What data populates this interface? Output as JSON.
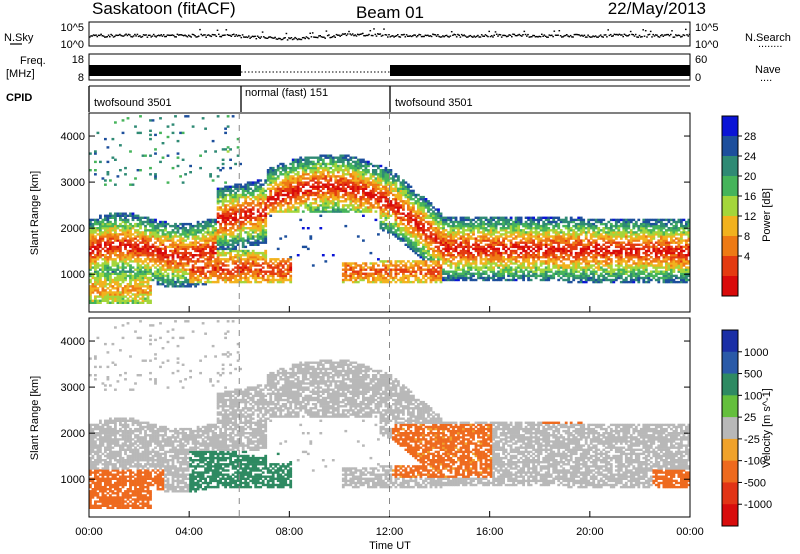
{
  "header": {
    "title_left": "Saskatoon (fitACF)",
    "title_center": "Beam 01",
    "title_right": "22/May/2013"
  },
  "noise_panel": {
    "left_label": "N.Sky",
    "left_ticks": [
      "10^5",
      "10^0"
    ],
    "right_ticks": [
      "10^5",
      "10^0"
    ],
    "right_label": "N.Search",
    "right_legend": "........"
  },
  "freq_panel": {
    "left_label_top": "Freq.",
    "left_label_bottom": "[MHz]",
    "left_ticks": [
      "18",
      "8"
    ],
    "right_ticks": [
      "60",
      "0"
    ],
    "right_label": "Nave",
    "right_legend": "...."
  },
  "cpid_panel": {
    "label": "CPID",
    "segments": [
      {
        "start_h": 0,
        "end_h": 6,
        "text": "twofsound 3501"
      },
      {
        "start_h": 6,
        "end_h": 12,
        "text": "normal (fast) 151"
      },
      {
        "start_h": 12,
        "end_h": 24,
        "text": "twofsound 3501"
      }
    ]
  },
  "chart_data": [
    {
      "type": "heatmap",
      "quantity": "Power",
      "ylabel": "Slant Range [km]",
      "ylim": [
        180,
        4500
      ],
      "yticks": [
        1000,
        2000,
        3000,
        4000
      ],
      "xlim": [
        0,
        24
      ],
      "colorbar": {
        "label": "Power [dB]",
        "range": [
          0,
          32
        ],
        "ticks": [
          "28",
          "24",
          "20",
          "16",
          "12",
          "8",
          "4"
        ],
        "colors": [
          "#0a14d6",
          "#1d4f9c",
          "#2f8a74",
          "#45b45a",
          "#a4d63a",
          "#f2b21e",
          "#ee7a14",
          "#e43a10",
          "#d90a0a"
        ]
      }
    },
    {
      "type": "heatmap",
      "quantity": "Velocity",
      "ylabel": "Slant Range [km]",
      "ylim": [
        180,
        4500
      ],
      "yticks": [
        1000,
        2000,
        3000,
        4000
      ],
      "xlim": [
        0,
        24
      ],
      "colorbar": {
        "label": "Velocity [m s^-1]",
        "ticks": [
          "1000",
          "500",
          "100",
          "25",
          "-25",
          "-100",
          "-500",
          "-1000"
        ],
        "colors": [
          "#1b2fa6",
          "#2a5aa8",
          "#2e8a62",
          "#64bf3c",
          "#b8b8b8",
          "#f0a22a",
          "#ee6a1e",
          "#e23416",
          "#d80c0c"
        ]
      }
    }
  ],
  "xaxis": {
    "ticks": [
      "00:00",
      "04:00",
      "08:00",
      "12:00",
      "16:00",
      "20:00",
      "00:00"
    ],
    "label": "Time UT"
  }
}
